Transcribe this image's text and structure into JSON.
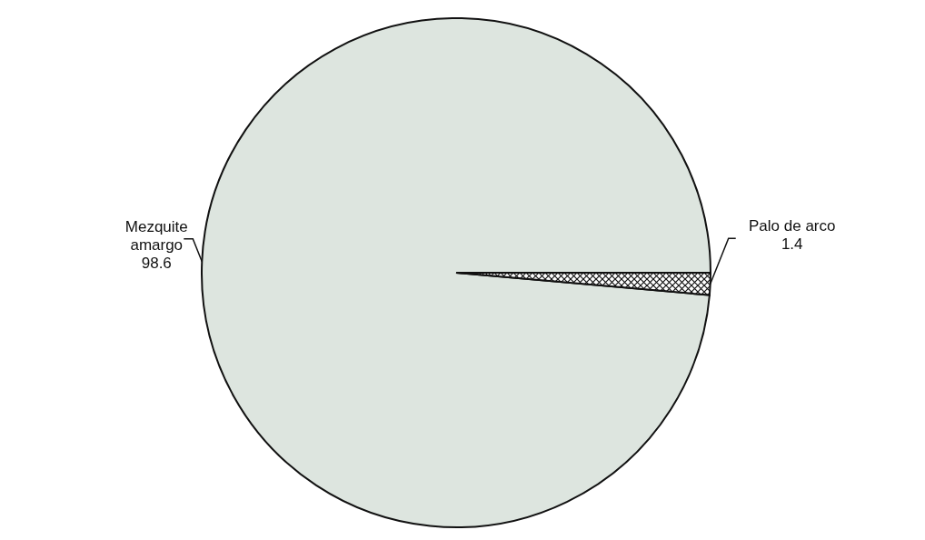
{
  "chart_data": {
    "type": "pie",
    "categories": [
      "Mezquite amargo",
      "Palo de arco"
    ],
    "values": [
      98.6,
      1.4
    ],
    "colors": [
      "#dde5df",
      "#111111"
    ],
    "data_labels": true
  }
}
